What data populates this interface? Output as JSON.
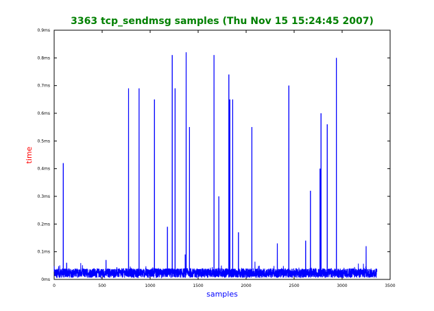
{
  "chart_data": {
    "type": "line",
    "title": "3363 tcp_sendmsg samples (Thu Nov 15 15:24:45 2007)",
    "xlabel": "samples",
    "ylabel": "time",
    "xlim": [
      0,
      3500
    ],
    "ylim": [
      0,
      0.9
    ],
    "x_ticks": [
      0,
      500,
      1000,
      1500,
      2000,
      2500,
      3000,
      3500
    ],
    "x_tick_labels": [
      "0",
      "500",
      "1000",
      "1500",
      "2000",
      "2500",
      "3000",
      "3500"
    ],
    "y_ticks": [
      0,
      0.1,
      0.2,
      0.3,
      0.4,
      0.5,
      0.6,
      0.7,
      0.8,
      0.9
    ],
    "y_tick_labels": [
      "0ms",
      "0.1ms",
      "0.2ms",
      "0.3ms",
      "0.4ms",
      "0.5ms",
      "0.6ms",
      "0.7ms",
      "0.8ms",
      "0.9ms"
    ],
    "grid": false,
    "n_samples": 3363,
    "baseline": 0.02,
    "spikes": [
      {
        "x": 95,
        "y": 0.42
      },
      {
        "x": 130,
        "y": 0.06
      },
      {
        "x": 540,
        "y": 0.07
      },
      {
        "x": 775,
        "y": 0.69
      },
      {
        "x": 885,
        "y": 0.69
      },
      {
        "x": 1045,
        "y": 0.65
      },
      {
        "x": 1180,
        "y": 0.19
      },
      {
        "x": 1230,
        "y": 0.81
      },
      {
        "x": 1260,
        "y": 0.69
      },
      {
        "x": 1365,
        "y": 0.09
      },
      {
        "x": 1375,
        "y": 0.82
      },
      {
        "x": 1410,
        "y": 0.55
      },
      {
        "x": 1665,
        "y": 0.81
      },
      {
        "x": 1715,
        "y": 0.3
      },
      {
        "x": 1820,
        "y": 0.74
      },
      {
        "x": 1830,
        "y": 0.65
      },
      {
        "x": 1860,
        "y": 0.65
      },
      {
        "x": 1920,
        "y": 0.17
      },
      {
        "x": 2060,
        "y": 0.55
      },
      {
        "x": 2325,
        "y": 0.13
      },
      {
        "x": 2445,
        "y": 0.7
      },
      {
        "x": 2620,
        "y": 0.14
      },
      {
        "x": 2670,
        "y": 0.32
      },
      {
        "x": 2770,
        "y": 0.4
      },
      {
        "x": 2780,
        "y": 0.6
      },
      {
        "x": 2845,
        "y": 0.56
      },
      {
        "x": 2940,
        "y": 0.8
      },
      {
        "x": 3250,
        "y": 0.12
      }
    ],
    "colors": {
      "series": "#0000ff",
      "title": "#008000",
      "xlabel": "#0000ff",
      "ylabel": "#ff0000",
      "axes": "#000000"
    }
  }
}
